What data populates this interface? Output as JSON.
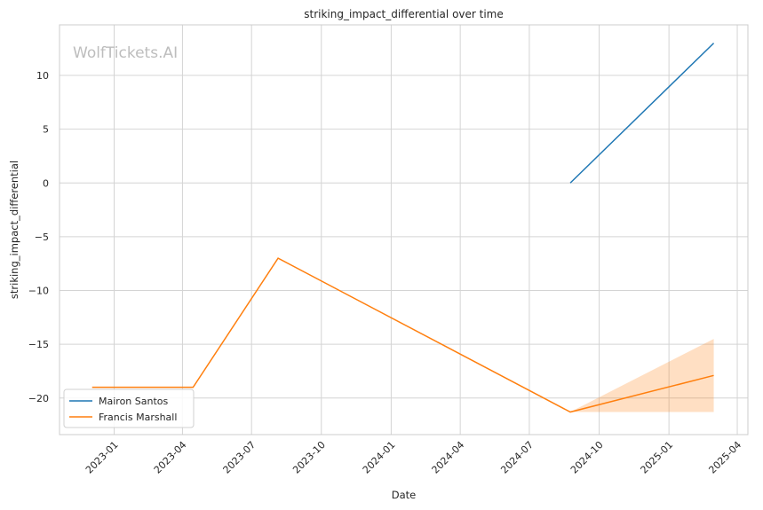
{
  "chart_data": {
    "type": "line",
    "title": "striking_impact_differential over time",
    "xlabel": "Date",
    "ylabel": "striking_impact_differential",
    "watermark": "WolfTickets.AI",
    "x_ticks": [
      "2023-01",
      "2023-04",
      "2023-07",
      "2023-10",
      "2024-01",
      "2024-04",
      "2024-07",
      "2024-10",
      "2025-01",
      "2025-04"
    ],
    "y_ticks": [
      10,
      5,
      0,
      -5,
      -10,
      -15,
      -20
    ],
    "y_tick_labels": [
      "10",
      "5",
      "0",
      "−5",
      "−10",
      "−15",
      "−20"
    ],
    "xlim": [
      "2022-10-21",
      "2025-04-15"
    ],
    "ylim": [
      -23.4,
      14.7
    ],
    "grid": true,
    "legend_position": "lower-left",
    "series": [
      {
        "name": "Mairon Santos",
        "color": "#1f77b4",
        "points": [
          {
            "x": "2024-08-24",
            "y": 0
          },
          {
            "x": "2025-03-01",
            "y": 13
          }
        ]
      },
      {
        "name": "Francis Marshall",
        "color": "#ff7f0e",
        "points": [
          {
            "x": "2022-12-03",
            "y": -19
          },
          {
            "x": "2023-04-15",
            "y": -19
          },
          {
            "x": "2023-08-05",
            "y": -7
          },
          {
            "x": "2024-08-24",
            "y": -21.3
          },
          {
            "x": "2025-03-01",
            "y": -17.9
          }
        ],
        "band": [
          {
            "x": "2024-08-24",
            "low": -21.3,
            "high": -21.3
          },
          {
            "x": "2025-03-01",
            "low": -21.3,
            "high": -14.5
          }
        ]
      }
    ]
  }
}
